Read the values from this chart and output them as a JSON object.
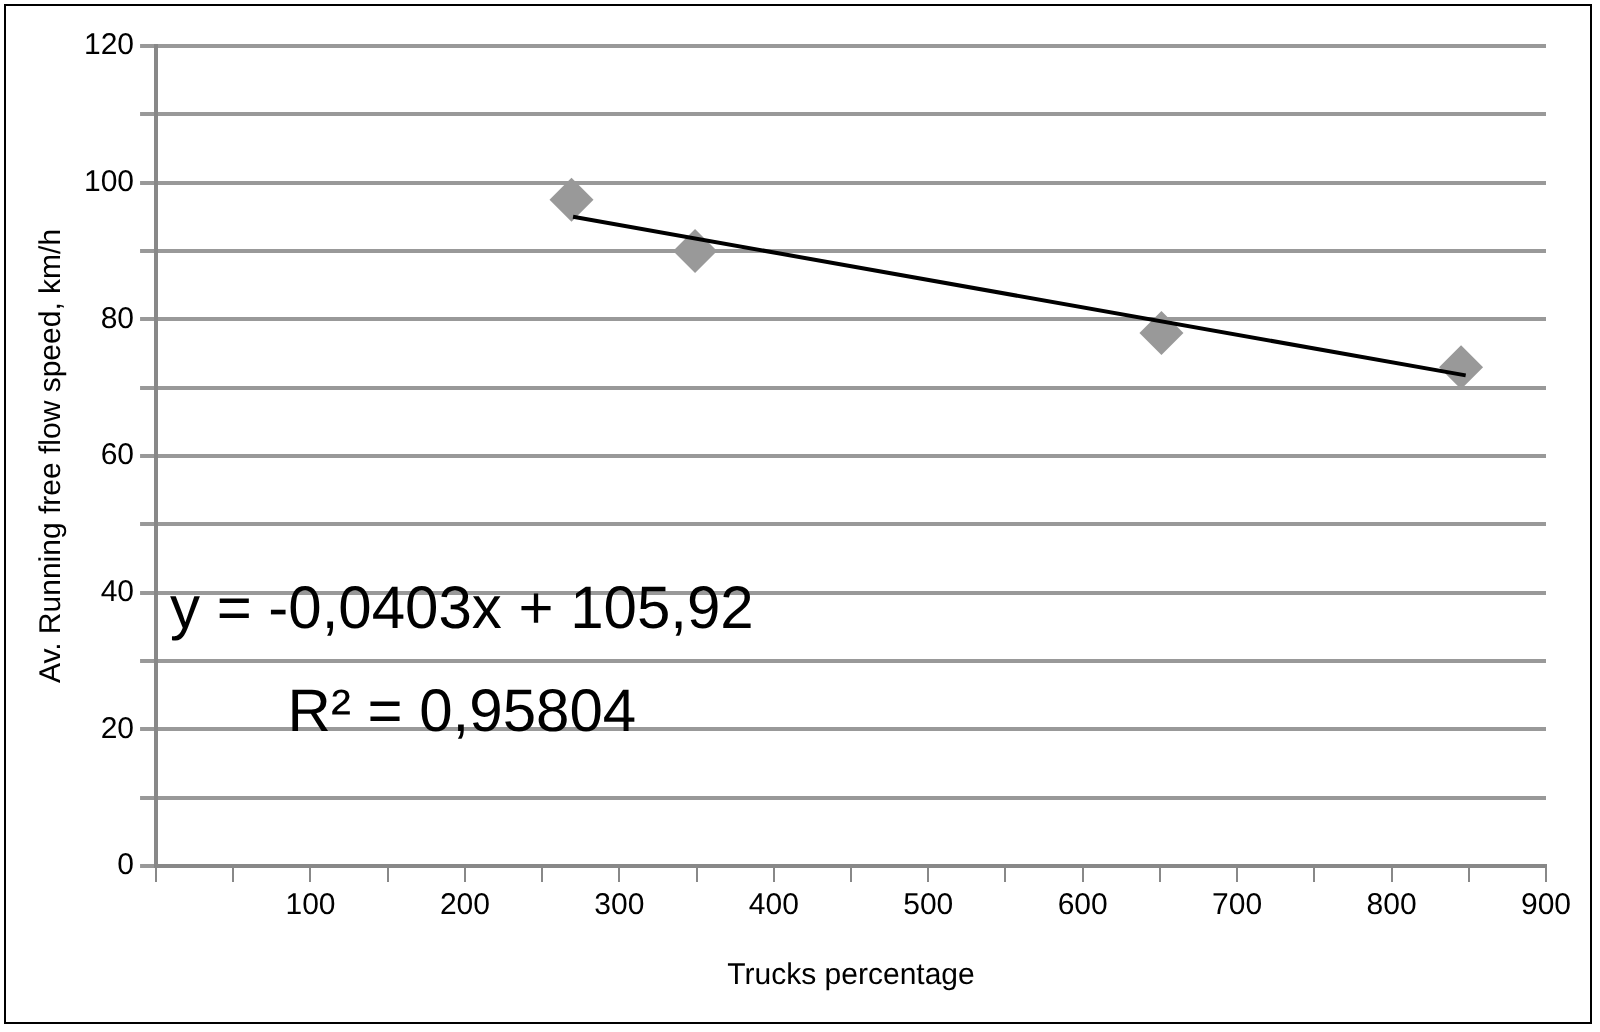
{
  "chart_data": {
    "type": "scatter",
    "xlabel": "Trucks percentage",
    "ylabel": "Av. Running free flow speed, km/h",
    "series": [
      {
        "type": "scatter",
        "color": "#999999",
        "x": [
          269,
          349,
          651,
          845
        ],
        "values": [
          97.5,
          90,
          78,
          73
        ],
        "marker": "diamond"
      },
      {
        "type": "line",
        "color": "#000000",
        "x": [
          270,
          848
        ],
        "values": [
          95,
          71.8
        ],
        "marker": "none",
        "line_style": "solid"
      }
    ],
    "xlim": [
      0,
      900
    ],
    "ylim": [
      0,
      120
    ],
    "xticks": [
      {
        "value": 0,
        "label": null
      },
      {
        "value": 50,
        "label": null
      },
      100,
      {
        "value": 150,
        "label": null
      },
      200,
      {
        "value": 250,
        "label": null
      },
      300,
      {
        "value": 350,
        "label": null
      },
      400,
      {
        "value": 450,
        "label": null
      },
      500,
      {
        "value": 550,
        "label": null
      },
      600,
      {
        "value": 650,
        "label": null
      },
      700,
      {
        "value": 750,
        "label": null
      },
      800,
      {
        "value": 850,
        "label": null
      },
      900
    ],
    "yticks": [
      0,
      {
        "value": 10,
        "label": null
      },
      20,
      {
        "value": 30,
        "label": null
      },
      40,
      {
        "value": 50,
        "label": null
      },
      60,
      {
        "value": 70,
        "label": null
      },
      80,
      {
        "value": 90,
        "label": null
      },
      100,
      {
        "value": 110,
        "label": null
      },
      120
    ],
    "grid": "y",
    "legend": false,
    "annotations": [
      "y = -0,0403x + 105,92",
      "R² = 0,95804"
    ]
  }
}
